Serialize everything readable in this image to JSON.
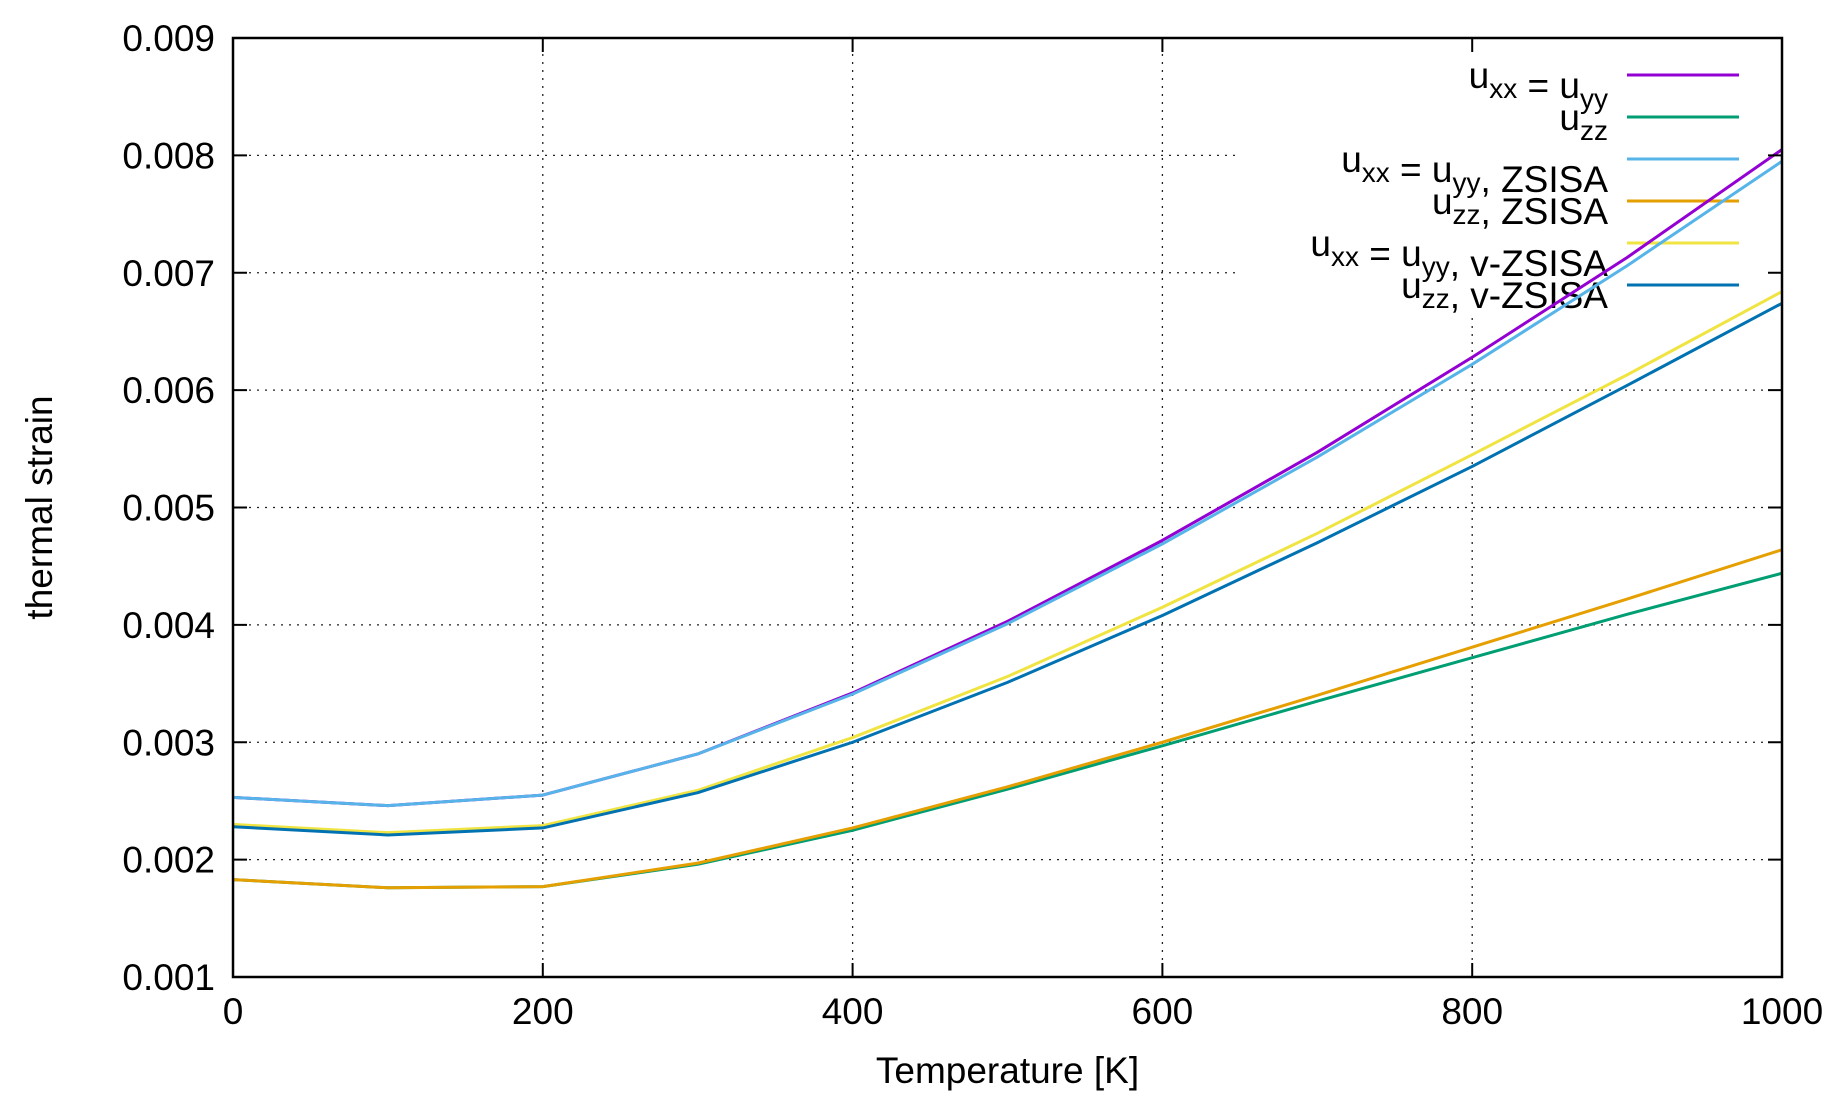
{
  "chart_data": {
    "type": "line",
    "title": "",
    "xlabel": "Temperature [K]",
    "ylabel": "thermal strain",
    "xlim": [
      0,
      1000
    ],
    "ylim": [
      0.001,
      0.009
    ],
    "xticks": [
      0,
      200,
      400,
      600,
      800,
      1000
    ],
    "xtick_labels": [
      "0",
      "200",
      "400",
      "600",
      "800",
      "1000"
    ],
    "yticks": [
      0.001,
      0.002,
      0.003,
      0.004,
      0.005,
      0.006,
      0.007,
      0.008,
      0.009
    ],
    "ytick_labels": [
      "0.001",
      "0.002",
      "0.003",
      "0.004",
      "0.005",
      "0.006",
      "0.007",
      "0.008",
      "0.009"
    ],
    "grid": true,
    "grid_style": "dotted",
    "legend_position": "top-right",
    "x": [
      0,
      100,
      200,
      300,
      400,
      500,
      600,
      700,
      800,
      900,
      1000
    ],
    "series": [
      {
        "legend": [
          {
            "t": "u"
          },
          {
            "t": "xx",
            "sub": true
          },
          {
            "t": " = u"
          },
          {
            "t": "yy",
            "sub": true
          }
        ],
        "color": "#9400d3",
        "values": [
          0.00253,
          0.00246,
          0.00255,
          0.0029,
          0.00342,
          0.00403,
          0.00472,
          0.00547,
          0.00628,
          0.00713,
          0.00805
        ]
      },
      {
        "legend": [
          {
            "t": "u"
          },
          {
            "t": "zz",
            "sub": true
          }
        ],
        "color": "#009e73",
        "values": [
          0.00183,
          0.00176,
          0.00177,
          0.00196,
          0.00225,
          0.0026,
          0.00297,
          0.00335,
          0.00372,
          0.00409,
          0.00444
        ]
      },
      {
        "legend": [
          {
            "t": "u"
          },
          {
            "t": "xx",
            "sub": true
          },
          {
            "t": " = u"
          },
          {
            "t": "yy",
            "sub": true
          },
          {
            "t": ", ZSISA"
          }
        ],
        "color": "#56b4e9",
        "values": [
          0.00253,
          0.00246,
          0.00255,
          0.0029,
          0.00341,
          0.00401,
          0.00469,
          0.00543,
          0.00622,
          0.00706,
          0.00795
        ]
      },
      {
        "legend": [
          {
            "t": "u"
          },
          {
            "t": "zz",
            "sub": true
          },
          {
            "t": ", ZSISA"
          }
        ],
        "color": "#e69f00",
        "values": [
          0.00183,
          0.00176,
          0.00177,
          0.00197,
          0.00227,
          0.00262,
          0.003,
          0.0034,
          0.00381,
          0.00422,
          0.00464
        ]
      },
      {
        "legend": [
          {
            "t": "u"
          },
          {
            "t": "xx",
            "sub": true
          },
          {
            "t": " = u"
          },
          {
            "t": "yy",
            "sub": true
          },
          {
            "t": ", v-ZSISA"
          }
        ],
        "color": "#f0e442",
        "values": [
          0.0023,
          0.00223,
          0.00229,
          0.00259,
          0.00304,
          0.00356,
          0.00415,
          0.00478,
          0.00545,
          0.00613,
          0.00684
        ]
      },
      {
        "legend": [
          {
            "t": "u"
          },
          {
            "t": "zz",
            "sub": true
          },
          {
            "t": ", v-ZSISA"
          }
        ],
        "color": "#0072b2",
        "values": [
          0.00228,
          0.00221,
          0.00227,
          0.00257,
          0.003,
          0.00351,
          0.00408,
          0.0047,
          0.00535,
          0.00604,
          0.00674
        ]
      }
    ]
  }
}
